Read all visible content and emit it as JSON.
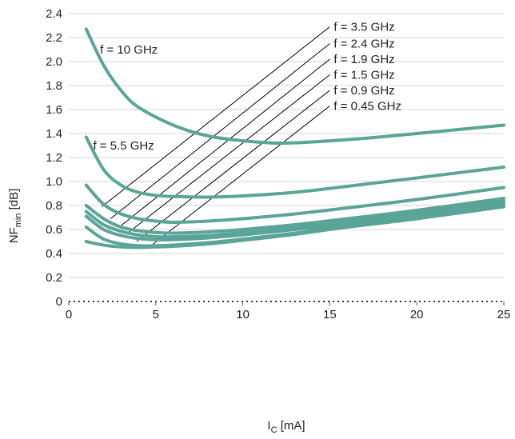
{
  "chart_data": {
    "type": "line",
    "xlabel": "I",
    "xlabel_sub": "C",
    "xlabel_unit": " [mA]",
    "ylabel": "NF",
    "ylabel_sub": "min",
    "ylabel_unit": " [dB]",
    "xlim": [
      0,
      25
    ],
    "ylim": [
      0,
      2.4
    ],
    "x_ticks": [
      0,
      5,
      10,
      15,
      20,
      25
    ],
    "y_ticks": [
      0,
      0.2,
      0.4,
      0.6,
      0.8,
      1.0,
      1.2,
      1.4,
      1.6,
      1.8,
      2.0,
      2.2,
      2.4
    ],
    "x_tick_labels": [
      "0",
      "5",
      "10",
      "15",
      "20",
      "25"
    ],
    "y_tick_labels": [
      "0",
      "0.2",
      "0.4",
      "0.6",
      "0.8",
      "1.0",
      "1.2",
      "1.4",
      "1.6",
      "1.8",
      "2.0",
      "2.2",
      "2.4"
    ],
    "grid": "horizontal",
    "line_color": "#5aa597",
    "series": [
      {
        "name": "f = 10 GHz",
        "x": [
          1,
          2,
          3,
          4,
          6,
          8,
          10,
          12,
          14,
          17,
          20,
          25
        ],
        "y": [
          2.27,
          1.97,
          1.76,
          1.62,
          1.47,
          1.38,
          1.34,
          1.32,
          1.33,
          1.36,
          1.4,
          1.47
        ]
      },
      {
        "name": "f = 5.5 GHz",
        "x": [
          1,
          2,
          3,
          4,
          5,
          6,
          8,
          10,
          13,
          16,
          20,
          25
        ],
        "y": [
          1.37,
          1.1,
          0.97,
          0.91,
          0.885,
          0.875,
          0.87,
          0.88,
          0.91,
          0.96,
          1.03,
          1.12
        ]
      },
      {
        "name": "f = 3.5 GHz",
        "x": [
          1,
          2,
          3,
          4,
          5,
          6,
          8,
          10,
          13,
          16,
          20,
          25
        ],
        "y": [
          0.97,
          0.81,
          0.73,
          0.69,
          0.67,
          0.66,
          0.67,
          0.69,
          0.73,
          0.78,
          0.85,
          0.95
        ]
      },
      {
        "name": "f = 2.4 GHz",
        "x": [
          1,
          2,
          3,
          4,
          5,
          6,
          8,
          10,
          13,
          16,
          20,
          25
        ],
        "y": [
          0.8,
          0.69,
          0.62,
          0.59,
          0.575,
          0.57,
          0.58,
          0.6,
          0.64,
          0.69,
          0.76,
          0.86
        ]
      },
      {
        "name": "f = 1.9 GHz",
        "x": [
          1,
          2,
          3,
          4,
          5,
          6,
          8,
          10,
          13,
          16,
          20,
          25
        ],
        "y": [
          0.75,
          0.64,
          0.585,
          0.555,
          0.54,
          0.54,
          0.55,
          0.575,
          0.62,
          0.67,
          0.74,
          0.84
        ]
      },
      {
        "name": "f = 1.5 GHz",
        "x": [
          1,
          2,
          3,
          4,
          5,
          6,
          8,
          10,
          13,
          16,
          20,
          25
        ],
        "y": [
          0.71,
          0.6,
          0.55,
          0.525,
          0.515,
          0.515,
          0.53,
          0.555,
          0.6,
          0.65,
          0.725,
          0.83
        ]
      },
      {
        "name": "f = 0.9 GHz",
        "x": [
          1,
          2,
          3,
          4,
          5,
          6,
          8,
          10,
          13,
          16,
          20,
          25
        ],
        "y": [
          0.62,
          0.52,
          0.48,
          0.465,
          0.465,
          0.47,
          0.49,
          0.52,
          0.57,
          0.63,
          0.7,
          0.81
        ]
      },
      {
        "name": "f = 0.45 GHz",
        "x": [
          1,
          2,
          3,
          4,
          5,
          6,
          8,
          10,
          13,
          16,
          20,
          25
        ],
        "y": [
          0.5,
          0.47,
          0.455,
          0.45,
          0.455,
          0.46,
          0.48,
          0.51,
          0.56,
          0.62,
          0.69,
          0.79
        ]
      }
    ],
    "annotations": {
      "inline_labels": [
        {
          "text": "f = 10 GHz",
          "x": 1.8,
          "y": 2.1
        },
        {
          "text": "f = 5.5 GHz",
          "x": 1.4,
          "y": 1.3
        }
      ],
      "legend_labels": [
        "f = 3.5 GHz",
        "f = 2.4 GHz",
        "f = 1.9 GHz",
        "f = 1.5 GHz",
        "f = 0.9 GHz",
        "f = 0.45 GHz"
      ],
      "leader_lines": [
        {
          "from": [
            1.9,
            0.79
          ],
          "to": [
            15.0,
            2.29
          ]
        },
        {
          "from": [
            2.4,
            0.69
          ],
          "to": [
            15.0,
            2.15
          ]
        },
        {
          "from": [
            2.9,
            0.62
          ],
          "to": [
            15.0,
            2.02
          ]
        },
        {
          "from": [
            3.3,
            0.56
          ],
          "to": [
            15.0,
            1.89
          ]
        },
        {
          "from": [
            3.9,
            0.5
          ],
          "to": [
            15.0,
            1.76
          ]
        },
        {
          "from": [
            4.6,
            0.45
          ],
          "to": [
            15.0,
            1.63
          ]
        }
      ]
    }
  }
}
